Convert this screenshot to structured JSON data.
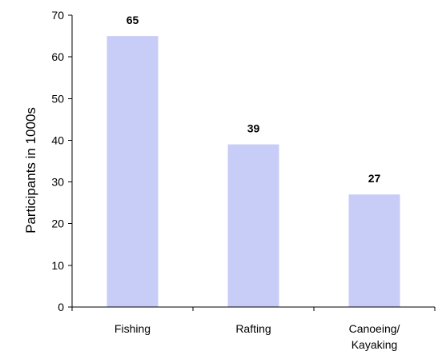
{
  "chart_data": {
    "type": "bar",
    "title": "",
    "xlabel": "",
    "ylabel": "Participants in 1000s",
    "categories": [
      {
        "lines": [
          "Fishing"
        ]
      },
      {
        "lines": [
          "Rafting"
        ]
      },
      {
        "lines": [
          "Canoeing/",
          "Kayaking"
        ]
      }
    ],
    "values": [
      65,
      39,
      27
    ],
    "value_labels": [
      "65",
      "39",
      "27"
    ],
    "ylim": [
      0,
      70
    ],
    "y_ticks": [
      "0",
      "10",
      "20",
      "30",
      "40",
      "50",
      "60",
      "70"
    ],
    "grid": false,
    "legend": "none",
    "bar_color": "#c8cdf8"
  }
}
